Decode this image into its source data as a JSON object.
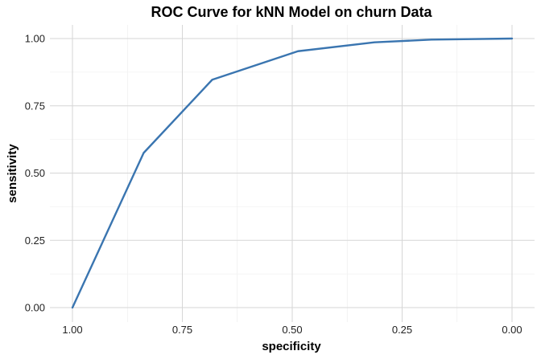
{
  "chart_data": {
    "type": "line",
    "title": "ROC Curve for kNN Model on churn Data",
    "xlabel": "specificity",
    "ylabel": "sensitivity",
    "x_reversed": true,
    "xlim": [
      1.0,
      0.0
    ],
    "ylim": [
      0.0,
      1.0
    ],
    "grid": true,
    "x_ticks": [
      1.0,
      0.75,
      0.5,
      0.25,
      0.0
    ],
    "x_tick_labels": [
      "1.00",
      "0.75",
      "0.50",
      "0.25",
      "0.00"
    ],
    "y_ticks": [
      0.0,
      0.25,
      0.5,
      0.75,
      1.0
    ],
    "y_tick_labels": [
      "0.00",
      "0.25",
      "0.50",
      "0.75",
      "1.00"
    ],
    "series": [
      {
        "color": "#3a75b0",
        "x": [
          1.0,
          0.838,
          0.682,
          0.487,
          0.313,
          0.183,
          0.0
        ],
        "y": [
          0.0,
          0.575,
          0.847,
          0.953,
          0.986,
          0.996,
          1.0
        ]
      }
    ]
  }
}
